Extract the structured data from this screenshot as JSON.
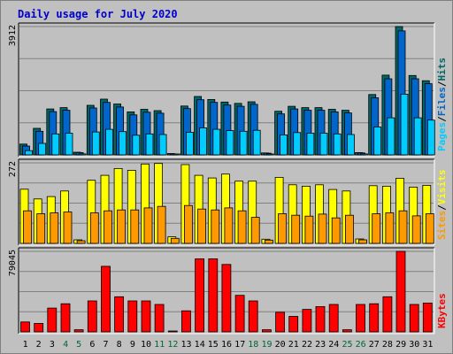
{
  "chart_data": {
    "title": "Daily usage for July 2020",
    "type": "bar",
    "days": [
      "1",
      "2",
      "3",
      "4",
      "5",
      "6",
      "7",
      "8",
      "9",
      "10",
      "11",
      "12",
      "13",
      "14",
      "15",
      "16",
      "17",
      "18",
      "19",
      "20",
      "21",
      "22",
      "23",
      "24",
      "25",
      "26",
      "27",
      "28",
      "29",
      "30",
      "31"
    ],
    "weekend_days": [
      "4",
      "5",
      "11",
      "12",
      "18",
      "19",
      "25",
      "26"
    ],
    "colors": {
      "hits": "#006666",
      "files": "#0066cc",
      "pages": "#00ccff",
      "visits": "#ffff00",
      "sites": "#ff9900",
      "kbytes": "#ff0000",
      "weekday_label": "#000000",
      "weekend_label": "#006633",
      "background": "#c0c0c0",
      "plot_bg": "#c0c0c0"
    },
    "panels": [
      {
        "name": "pages-files-hits",
        "ymax_label": "3912",
        "ymax": 3912,
        "side_labels": [
          {
            "text": "Pages",
            "color": "#00ccff"
          },
          {
            "text": "/",
            "color": "#000000"
          },
          {
            "text": "Files",
            "color": "#0066cc"
          },
          {
            "text": "/",
            "color": "#000000"
          },
          {
            "text": "Hits",
            "color": "#006666"
          }
        ],
        "series": [
          {
            "name": "Hits",
            "key": "hits",
            "values": [
              330,
              810,
              1400,
              1440,
              80,
              1510,
              1700,
              1550,
              1310,
              1390,
              1350,
              40,
              1490,
              1780,
              1690,
              1610,
              1570,
              1620,
              60,
              1330,
              1480,
              1440,
              1440,
              1390,
              1360,
              70,
              1840,
              2430,
              3912,
              2420,
              2260
            ]
          },
          {
            "name": "Files",
            "key": "files",
            "values": [
              270,
              720,
              1320,
              1360,
              70,
              1430,
              1600,
              1460,
              1220,
              1300,
              1270,
              30,
              1410,
              1680,
              1600,
              1520,
              1480,
              1540,
              50,
              1250,
              1400,
              1360,
              1360,
              1310,
              1280,
              60,
              1740,
              2320,
              3780,
              2320,
              2170
            ]
          },
          {
            "name": "Pages",
            "key": "pages",
            "values": [
              130,
              350,
              640,
              660,
              30,
              700,
              780,
              710,
              600,
              640,
              620,
              15,
              690,
              820,
              780,
              740,
              720,
              750,
              25,
              610,
              680,
              660,
              660,
              640,
              620,
              30,
              850,
              1130,
              1850,
              1130,
              1060
            ]
          }
        ]
      },
      {
        "name": "sites-visits",
        "ymax_label": "272",
        "ymax": 272,
        "side_labels": [
          {
            "text": "Sites",
            "color": "#ff9900"
          },
          {
            "text": "/",
            "color": "#000000"
          },
          {
            "text": "Visits",
            "color": "#ffff00"
          }
        ],
        "series": [
          {
            "name": "Visits",
            "key": "visits",
            "values": [
              183,
              150,
              158,
              177,
              12,
              213,
              230,
              253,
              247,
              268,
              270,
              22,
              266,
              230,
              221,
              234,
              210,
              210,
              14,
              223,
              198,
              193,
              198,
              182,
              177,
              15,
              195,
              193,
              220,
              190,
              196
            ]
          },
          {
            "name": "Sites",
            "key": "sites",
            "values": [
              110,
              100,
              103,
              106,
              9,
              103,
              110,
              113,
              113,
              120,
              125,
              17,
              128,
              116,
              113,
              120,
              110,
              88,
              11,
              100,
              95,
              92,
              99,
              86,
              95,
              12,
              100,
              103,
              110,
              93,
              100
            ]
          }
        ]
      },
      {
        "name": "kbytes",
        "ymax_label": "79045",
        "ymax": 79045,
        "side_labels": [
          {
            "text": "KBytes",
            "color": "#ff0000"
          }
        ],
        "series": [
          {
            "name": "KBytes",
            "key": "kbytes",
            "values": [
              9700,
              8300,
              23400,
              27600,
              2100,
              30400,
              64400,
              34500,
              30400,
              30400,
              26900,
              700,
              20700,
              71700,
              71700,
              66200,
              35900,
              30400,
              2100,
              19300,
              15200,
              22100,
              24800,
              26900,
              2100,
              26900,
              27600,
              34500,
              79045,
              26900,
              28300
            ]
          }
        ]
      }
    ]
  }
}
